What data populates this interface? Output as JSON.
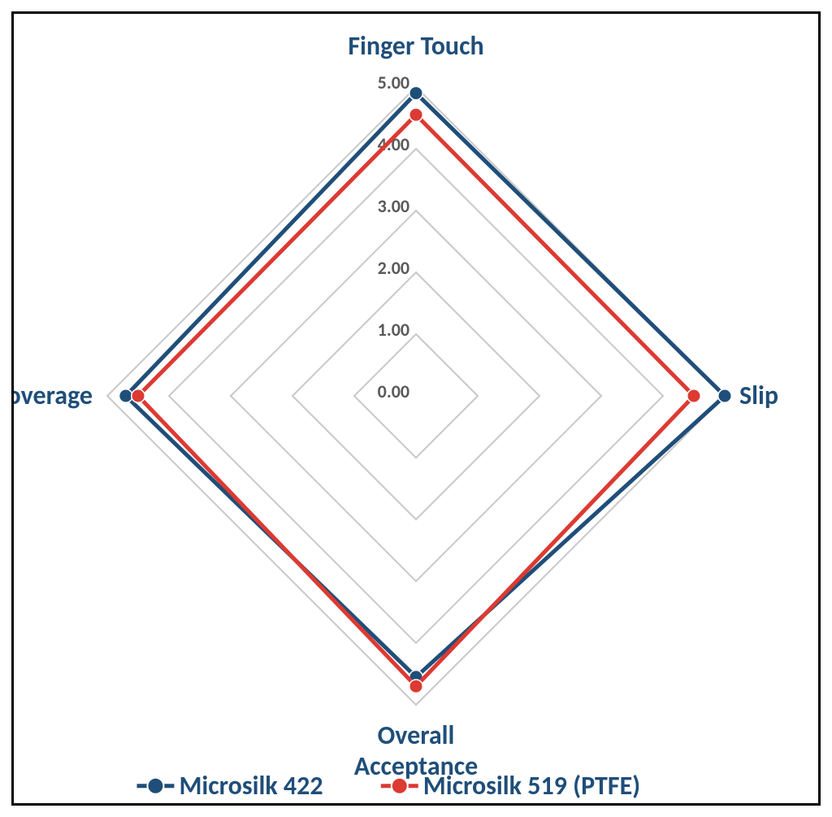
{
  "chart": {
    "type": "radar",
    "background_color": "#ffffff",
    "border_color": "#000000",
    "border_width": 3,
    "axes": [
      {
        "label": "Finger Touch",
        "angle_deg": 0
      },
      {
        "label": "Slip",
        "angle_deg": 90
      },
      {
        "label": "Overall Acceptance",
        "angle_deg": 180
      },
      {
        "label": "Coverage",
        "angle_deg": 270
      }
    ],
    "axis_label_color": "#1f4e79",
    "axis_label_fontsize": 32,
    "scale": {
      "min": 0.0,
      "max": 5.0,
      "step": 1.0,
      "tick_labels": [
        "0.00",
        "1.00",
        "2.00",
        "3.00",
        "4.00",
        "5.00"
      ],
      "tick_label_fontsize": 22,
      "tick_label_color": "#595959"
    },
    "gridline_color": "#c8c8c8",
    "gridline_width": 2,
    "series": [
      {
        "name": "Microsilk 422",
        "color": "#1f4e79",
        "marker_fill": "#1f4e79",
        "marker_stroke": "#1f4e79",
        "line_width": 5,
        "marker_radius": 7,
        "values": [
          4.9,
          5.0,
          4.55,
          4.7
        ]
      },
      {
        "name": "Microsilk 519 (PTFE)",
        "color": "#dc3a32",
        "marker_fill": "#dc3a32",
        "marker_stroke": "#dc3a32",
        "line_width": 5,
        "marker_radius": 7,
        "values": [
          4.55,
          4.5,
          4.7,
          4.5
        ]
      }
    ],
    "legend": {
      "fontsize": 32,
      "text_color": "#1f4e79",
      "line_length": 46,
      "marker_radius": 9
    }
  }
}
